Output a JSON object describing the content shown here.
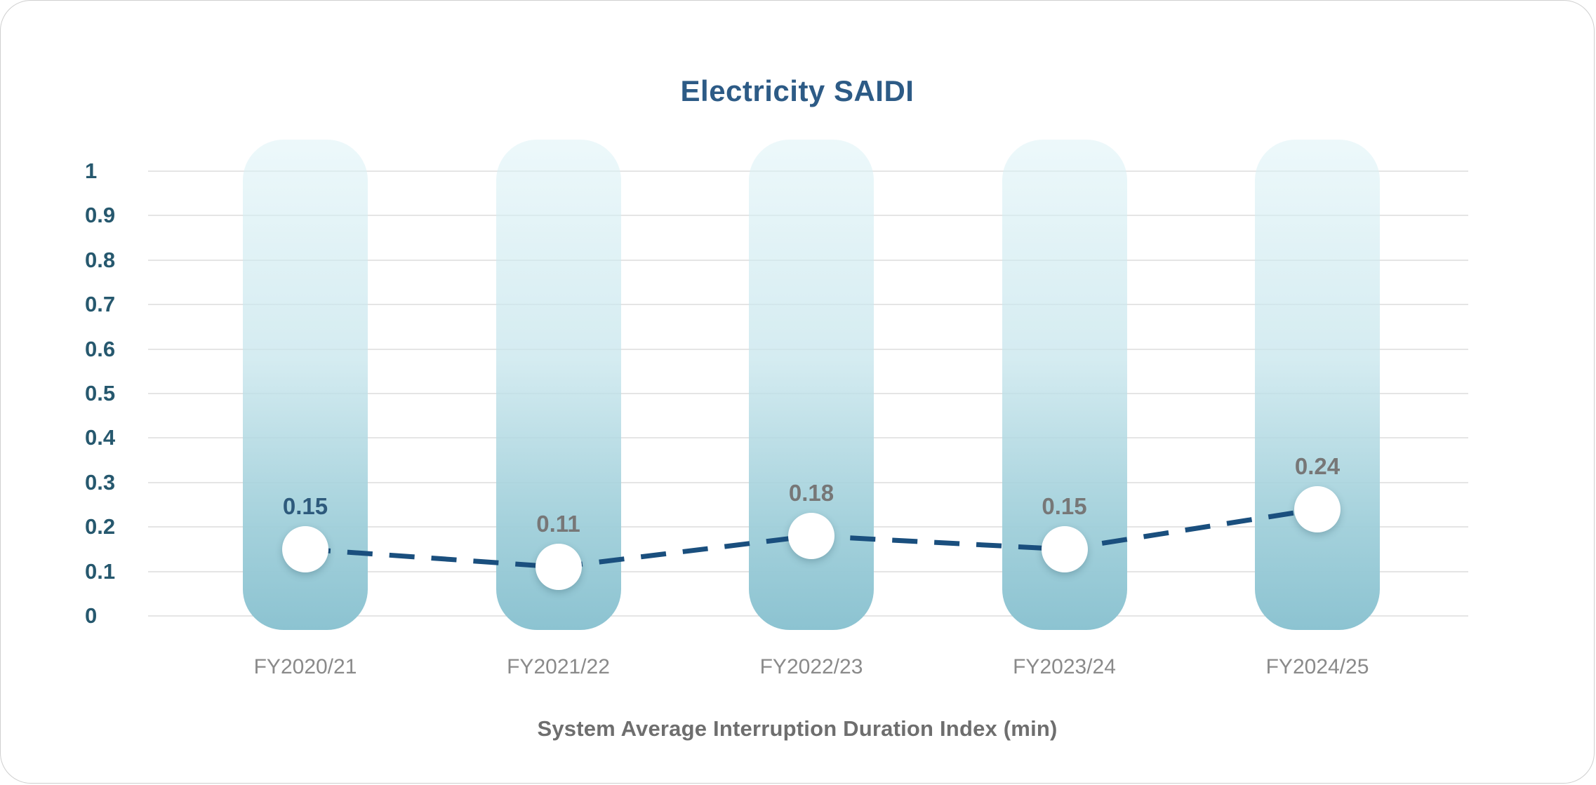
{
  "card": {
    "title": "Electricity SAIDI"
  },
  "chart_data": {
    "type": "line",
    "title": "Electricity SAIDI",
    "categories": [
      "FY2020/21",
      "FY2021/22",
      "FY2022/23",
      "FY2023/24",
      "FY2024/25"
    ],
    "series": [
      {
        "name": "Electricity SAIDI",
        "values": [
          0.15,
          0.11,
          0.18,
          0.15,
          0.24
        ]
      }
    ],
    "point_labels": [
      "0.15",
      "0.11",
      "0.18",
      "0.15",
      "0.24"
    ],
    "emphasis_index": 0,
    "xlabel": "System Average Interruption Duration Index (min)",
    "ylabel": "",
    "ylim": [
      0,
      1
    ],
    "yticks": [
      "1",
      "0.9",
      "0.8",
      "0.7",
      "0.6",
      "0.5",
      "0.4",
      "0.3",
      "0.2",
      "0.1",
      "0"
    ],
    "grid": true,
    "legend": false,
    "line_style": "dashed",
    "marker_style": "white-circle"
  },
  "colors": {
    "title": "#2D5B86",
    "ytick": "#26586E",
    "xtick": "#8A8A8A",
    "axis_title": "#6E6E6E",
    "gridline": "#E5E5E5",
    "trend_line": "#1A4F7E",
    "marker_fill": "#FFFFFF",
    "point_label": "#777777",
    "point_label_emphasis": "#2E5A7C",
    "bar_top": "rgba(222,243,247,0.55)",
    "bar_mid": "rgba(198,229,236,0.75)",
    "bar_low": "rgba(160,207,218,0.95)",
    "bar_bottom": "rgba(140,195,209,1)"
  }
}
